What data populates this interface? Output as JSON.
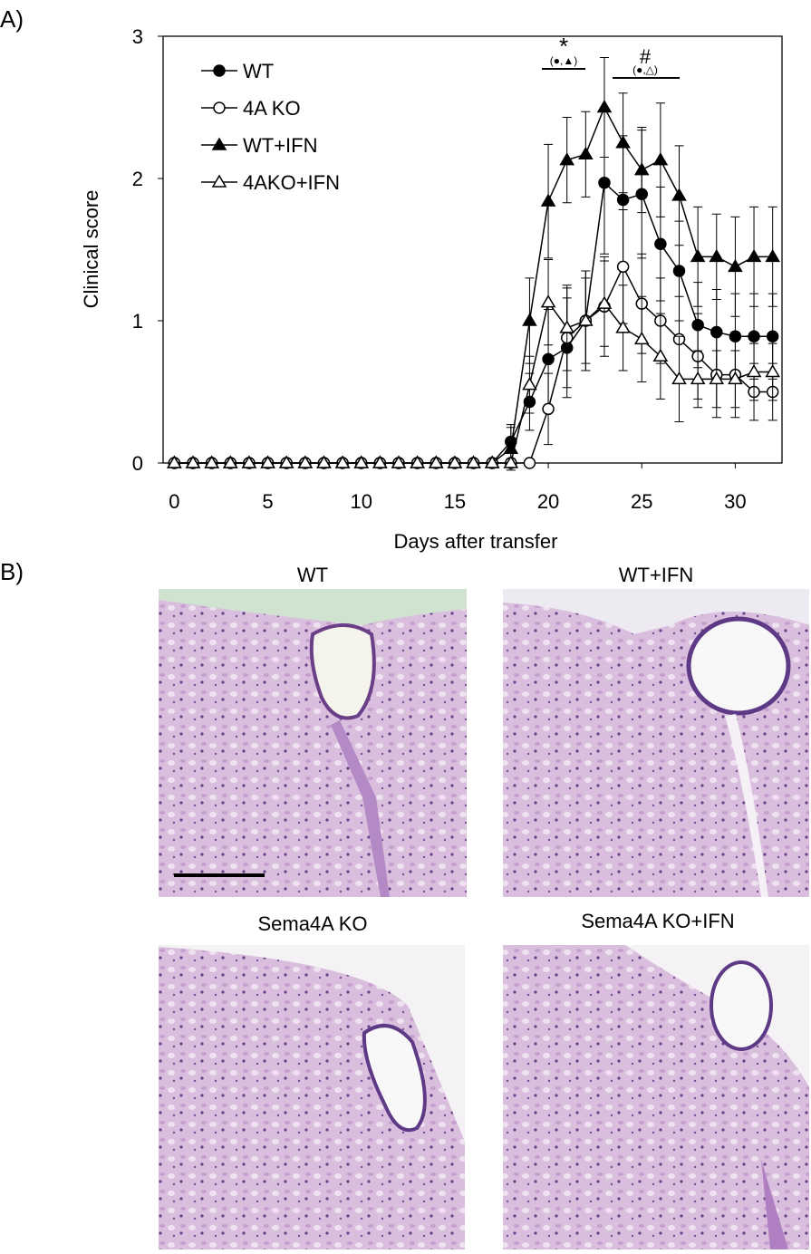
{
  "chart_data": {
    "type": "line",
    "x_label": "Days after transfer",
    "y_label": "Clinical score",
    "x": [
      0,
      1,
      2,
      3,
      4,
      5,
      6,
      7,
      8,
      9,
      10,
      11,
      12,
      13,
      14,
      15,
      16,
      17,
      18,
      19,
      20,
      21,
      22,
      23,
      24,
      25,
      26,
      27,
      28,
      29,
      30,
      31,
      32
    ],
    "xlim": [
      -0.6,
      32.5
    ],
    "xticks": [
      0,
      5,
      10,
      15,
      20,
      25,
      30
    ],
    "ylim": [
      0,
      3
    ],
    "yticks": [
      0,
      1,
      2,
      3
    ],
    "series": [
      {
        "name": "WT",
        "color": "#000000",
        "marker": "circle-filled",
        "values": [
          0,
          0,
          0,
          0,
          0,
          0,
          0,
          0,
          0,
          0,
          0,
          0,
          0,
          0,
          0,
          0,
          0,
          0,
          0.15,
          0.43,
          0.73,
          0.81,
          1.0,
          1.97,
          1.85,
          1.89,
          1.54,
          1.35,
          0.97,
          0.92,
          0.89,
          0.89,
          0.89
        ],
        "errors": [
          0,
          0,
          0,
          0,
          0,
          0,
          0,
          0,
          0,
          0,
          0,
          0,
          0,
          0,
          0,
          0,
          0,
          0,
          0.12,
          0.2,
          0.35,
          0.35,
          0.35,
          0.5,
          0.45,
          0.45,
          0.4,
          0.35,
          0.3,
          0.3,
          0.3,
          0.3,
          0.3
        ]
      },
      {
        "name": "4A KO",
        "color": "#000000",
        "marker": "circle-open",
        "values": [
          0,
          0,
          0,
          0,
          0,
          0,
          0,
          0,
          0,
          0,
          0,
          0,
          0,
          0,
          0,
          0,
          0,
          0,
          0,
          0,
          0.38,
          0.88,
          1.0,
          1.1,
          1.38,
          1.12,
          1.0,
          0.87,
          0.75,
          0.62,
          0.62,
          0.5,
          0.5
        ],
        "errors": [
          0,
          0,
          0,
          0,
          0,
          0,
          0,
          0,
          0,
          0,
          0,
          0,
          0,
          0,
          0,
          0,
          0,
          0,
          0,
          0,
          0.25,
          0.35,
          0.35,
          0.35,
          0.4,
          0.35,
          0.3,
          0.3,
          0.3,
          0.3,
          0.3,
          0.2,
          0.2
        ]
      },
      {
        "name": "WT+IFN",
        "color": "#000000",
        "marker": "triangle-filled",
        "values": [
          0,
          0,
          0,
          0,
          0,
          0,
          0,
          0,
          0,
          0,
          0,
          0,
          0,
          0,
          0,
          0,
          0,
          0,
          0.1,
          1.0,
          1.84,
          2.13,
          2.17,
          2.5,
          2.25,
          2.06,
          2.13,
          1.88,
          1.45,
          1.45,
          1.38,
          1.45,
          1.45
        ],
        "errors": [
          0,
          0,
          0,
          0,
          0,
          0,
          0,
          0,
          0,
          0,
          0,
          0,
          0,
          0,
          0,
          0,
          0,
          0,
          0.15,
          0.3,
          0.4,
          0.3,
          0.3,
          0.35,
          0.35,
          0.3,
          0.4,
          0.35,
          0.35,
          0.3,
          0.35,
          0.35,
          0.35
        ]
      },
      {
        "name": "4AKO+IFN",
        "color": "#000000",
        "marker": "triangle-open",
        "values": [
          0,
          0,
          0,
          0,
          0,
          0,
          0,
          0,
          0,
          0,
          0,
          0,
          0,
          0,
          0,
          0,
          0,
          0,
          0,
          0.55,
          1.13,
          0.95,
          1.0,
          1.12,
          0.95,
          0.87,
          0.75,
          0.59,
          0.59,
          0.59,
          0.59,
          0.64,
          0.64
        ],
        "errors": [
          0,
          0,
          0,
          0,
          0,
          0,
          0,
          0,
          0,
          0,
          0,
          0,
          0,
          0,
          0,
          0,
          0,
          0,
          0,
          0.2,
          0.3,
          0.3,
          0.3,
          0.3,
          0.3,
          0.3,
          0.3,
          0.3,
          0.2,
          0.2,
          0.2,
          0.2,
          0.2
        ]
      }
    ],
    "annotations": [
      {
        "symbol": "*",
        "groups": "(●,▲)"
      },
      {
        "symbol": "#",
        "groups": "(●,△)"
      }
    ]
  },
  "panels": {
    "a_label": "A)",
    "b_label": "B)",
    "images": [
      {
        "title": "WT"
      },
      {
        "title": "WT+IFN"
      },
      {
        "title": "Sema4A KO"
      },
      {
        "title": "Sema4A KO+IFN"
      }
    ]
  }
}
